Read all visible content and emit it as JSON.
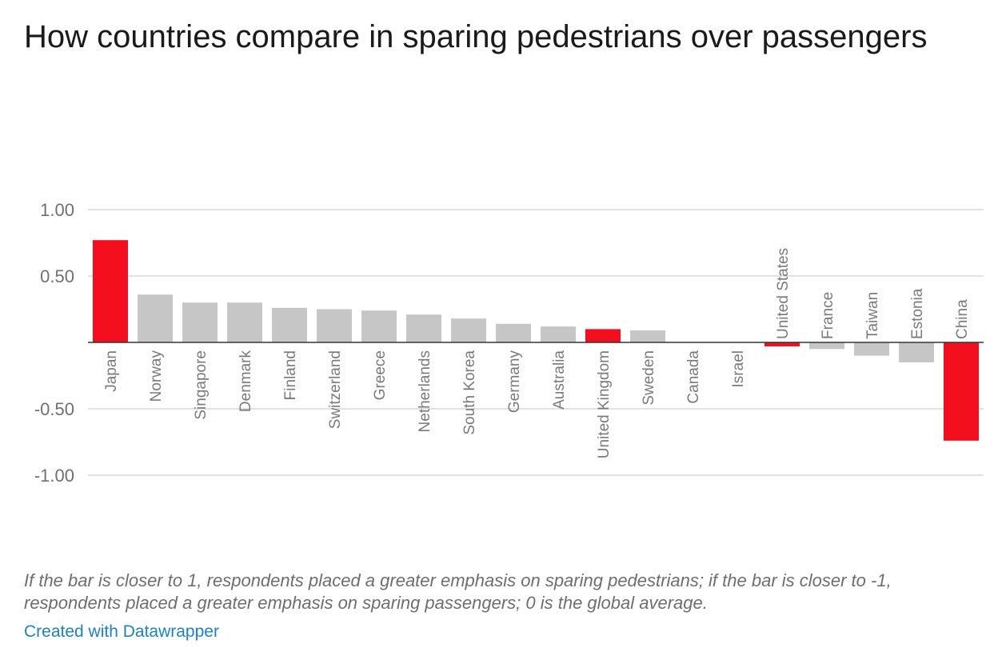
{
  "title": "How countries compare in sparing pedestrians over passengers",
  "notes": "If the bar is closer to 1, respondents placed a greater emphasis on sparing pedestrians; if the bar is closer to -1, respondents placed a greater emphasis on sparing passengers; 0 is the global average.",
  "credit": "Created with Datawrapper",
  "colors": {
    "highlight": "#f40f1f",
    "default": "#c6c6c6",
    "grid": "#d9d9d9",
    "baseline": "#333333",
    "tick_text": "#707070",
    "category_text": "#7a7a7a",
    "credit": "#1d81c6"
  },
  "chart_data": {
    "type": "bar",
    "categories": [
      "Japan",
      "Norway",
      "Singapore",
      "Denmark",
      "Finland",
      "Switzerland",
      "Greece",
      "Netherlands",
      "South Korea",
      "Germany",
      "Australia",
      "United Kingdom",
      "Sweden",
      "Canada",
      "Israel",
      "United States",
      "France",
      "Taiwan",
      "Estonia",
      "China"
    ],
    "values": [
      0.77,
      0.36,
      0.3,
      0.3,
      0.26,
      0.25,
      0.24,
      0.21,
      0.18,
      0.14,
      0.12,
      0.1,
      0.09,
      0.0,
      0.0,
      -0.03,
      -0.05,
      -0.1,
      -0.15,
      -0.74
    ],
    "highlighted": [
      "Japan",
      "United Kingdom",
      "United States",
      "China"
    ],
    "ylim": [
      -1.0,
      1.0
    ],
    "yticks": [
      1.0,
      0.5,
      -0.5,
      -1.0
    ],
    "ytick_labels": [
      "1.00",
      "0.50",
      "-0.50",
      "-1.00"
    ],
    "grid": true
  }
}
